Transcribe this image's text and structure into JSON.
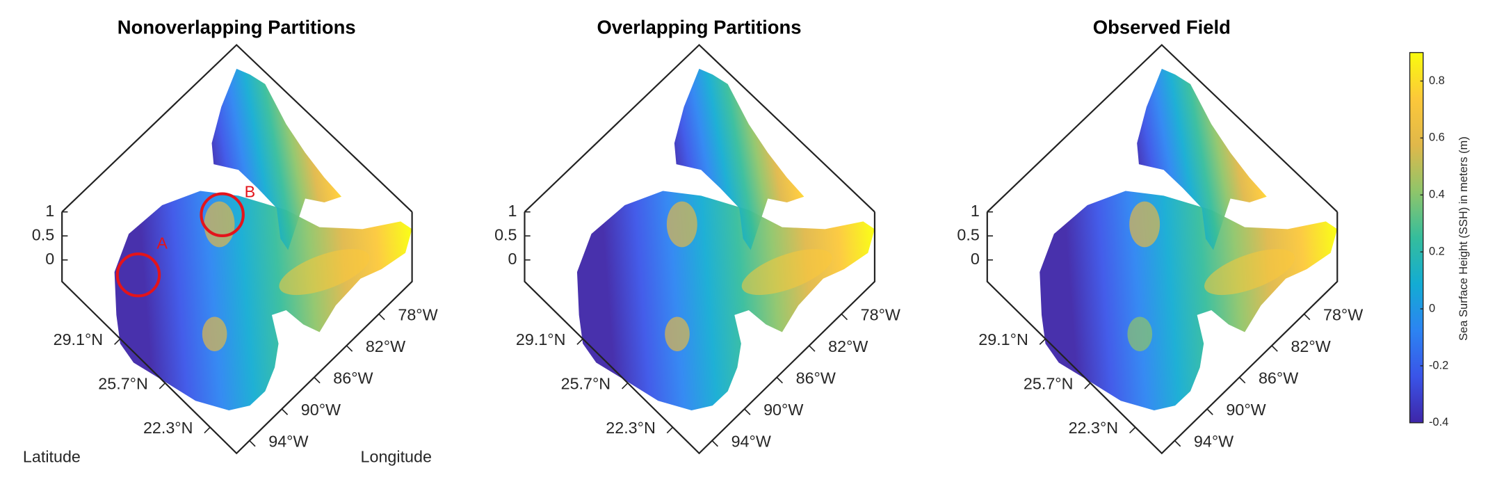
{
  "chart_data": [
    {
      "type": "surface",
      "title": "Nonoverlapping Partitions",
      "zlim": [
        -0.45,
        1
      ],
      "zticks": [
        0,
        0.5,
        1
      ],
      "ylim": [
        20.3,
        33.5
      ],
      "yticks": [
        {
          "value": 29.1,
          "label": "29.1°N"
        },
        {
          "value": 25.7,
          "label": "25.7°N"
        },
        {
          "value": 22.3,
          "label": "22.3°N"
        }
      ],
      "xlim": [
        -95.6,
        -73.9
      ],
      "xticks": [
        {
          "value": -78,
          "label": "78°W"
        },
        {
          "value": -82,
          "label": "82°W"
        },
        {
          "value": -86,
          "label": "86°W"
        },
        {
          "value": -90,
          "label": "90°W"
        },
        {
          "value": -94,
          "label": "94°W"
        }
      ],
      "xlabel": "Longitude",
      "ylabel": "Latitude",
      "annotations": [
        "A",
        "B"
      ]
    },
    {
      "type": "surface",
      "title": "Overlapping Partitions",
      "zlim": [
        -0.45,
        1
      ],
      "zticks": [
        0,
        0.5,
        1
      ],
      "ylim": [
        20.3,
        33.5
      ],
      "yticks": [
        {
          "value": 29.1,
          "label": "29.1°N"
        },
        {
          "value": 25.7,
          "label": "25.7°N"
        },
        {
          "value": 22.3,
          "label": "22.3°N"
        }
      ],
      "xlim": [
        -95.6,
        -73.9
      ],
      "xticks": [
        {
          "value": -78,
          "label": "78°W"
        },
        {
          "value": -82,
          "label": "82°W"
        },
        {
          "value": -86,
          "label": "86°W"
        },
        {
          "value": -90,
          "label": "90°W"
        },
        {
          "value": -94,
          "label": "94°W"
        }
      ]
    },
    {
      "type": "surface",
      "title": "Observed Field",
      "zlim": [
        -0.45,
        1
      ],
      "zticks": [
        0,
        0.5,
        1
      ],
      "ylim": [
        20.3,
        33.5
      ],
      "yticks": [
        {
          "value": 29.1,
          "label": "29.1°N"
        },
        {
          "value": 25.7,
          "label": "25.7°N"
        },
        {
          "value": 22.3,
          "label": "22.3°N"
        }
      ],
      "xlim": [
        -95.6,
        -73.9
      ],
      "xticks": [
        {
          "value": -78,
          "label": "78°W"
        },
        {
          "value": -82,
          "label": "82°W"
        },
        {
          "value": -86,
          "label": "86°W"
        },
        {
          "value": -90,
          "label": "90°W"
        },
        {
          "value": -94,
          "label": "94°W"
        }
      ]
    }
  ],
  "colorbar": {
    "label": "Sea Surface Height (SSH) in meters (m)",
    "lim": [
      -0.4,
      0.9
    ],
    "ticks": [
      -0.4,
      -0.2,
      0,
      0.2,
      0.4,
      0.6,
      0.8
    ],
    "colormap": [
      "#3e26a8",
      "#3a54e8",
      "#2c84f2",
      "#13acd3",
      "#35bd9c",
      "#8fc56a",
      "#e0b84a",
      "#fcc83a",
      "#f9fb0e"
    ]
  }
}
